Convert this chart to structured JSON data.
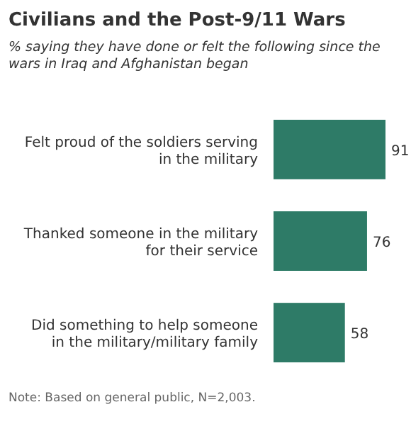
{
  "chart_data": {
    "type": "bar",
    "orientation": "horizontal",
    "title": "Civilians and the Post-9/11 Wars",
    "subtitle": "% saying they have done or felt the following since the wars in Iraq and Afghanistan began",
    "categories": [
      "Felt proud of the soldiers serving in the military",
      "Thanked someone in the military for their service",
      "Did something to help someone in the military/military family"
    ],
    "values": [
      91,
      76,
      58
    ],
    "color": "#2e7b67",
    "data_labels": true,
    "annotations": [
      "Note: Based on general public, N=2,003."
    ]
  }
}
